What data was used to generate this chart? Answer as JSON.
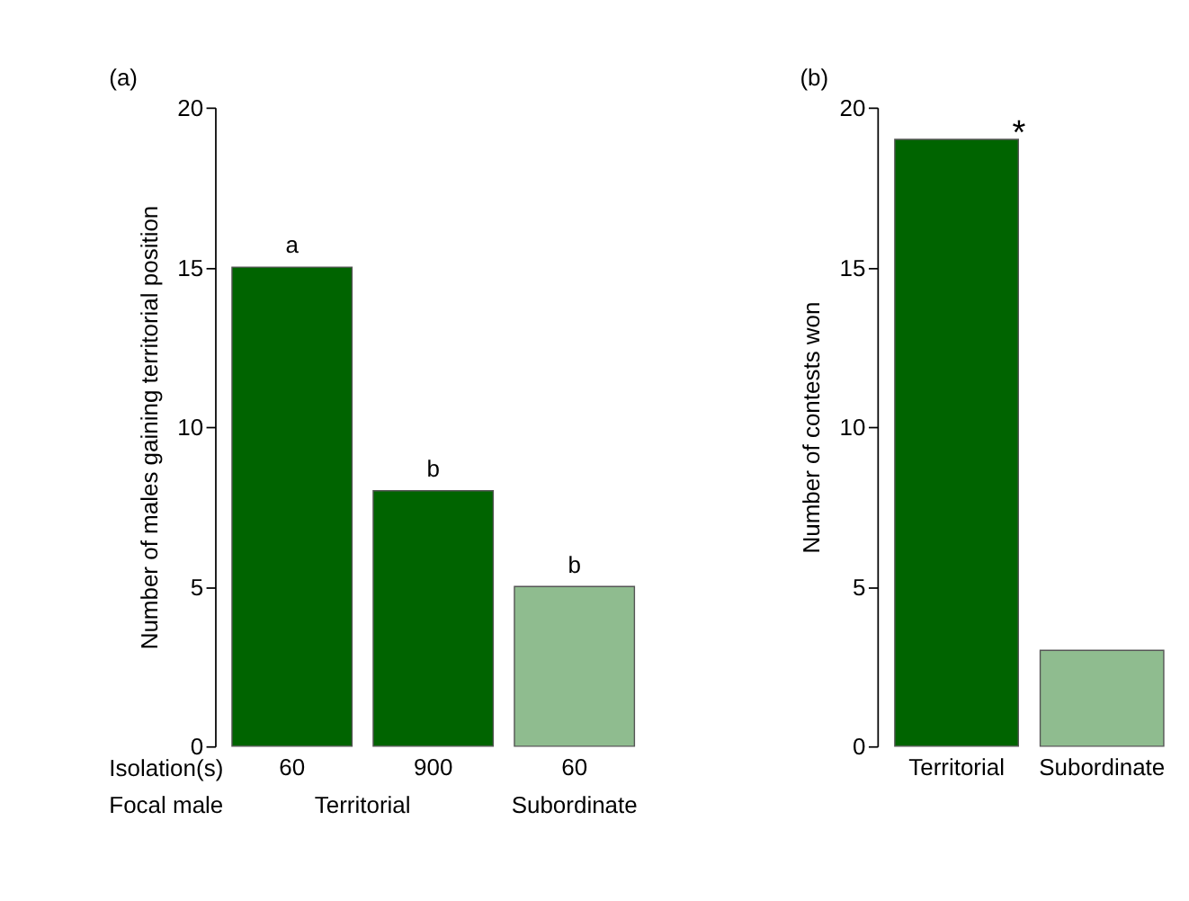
{
  "chart_data": [
    {
      "type": "bar",
      "title": "(a)",
      "ylabel": "Number of males gaining territorial position",
      "categories": [
        "60",
        "900",
        "60"
      ],
      "values": [
        15,
        8,
        5
      ],
      "value_labels": [
        "a",
        "b",
        "b"
      ],
      "colors": [
        "#006400",
        "#006400",
        "#8fbc8f"
      ],
      "ylim": [
        0,
        20
      ],
      "yticks": [
        0,
        5,
        10,
        15,
        20
      ],
      "grid": false,
      "annotations": [
        "Isolation(s)",
        "Focal male",
        "Territorial",
        "Subordinate"
      ]
    },
    {
      "type": "bar",
      "title": "(b)",
      "ylabel": "Number of contests won",
      "categories": [
        "Territorial",
        "Subordinate"
      ],
      "values": [
        19,
        3
      ],
      "value_labels": [
        "*",
        null
      ],
      "colors": [
        "#006400",
        "#8fbc8f"
      ],
      "ylim": [
        0,
        20
      ],
      "yticks": [
        0,
        5,
        10,
        15,
        20
      ],
      "grid": false
    }
  ]
}
